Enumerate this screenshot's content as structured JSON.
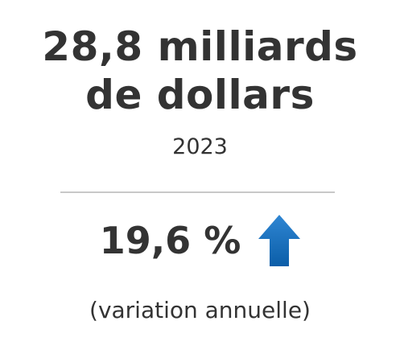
{
  "headline": {
    "line1": "28,8 milliards",
    "line2": "de dollars"
  },
  "year": "2023",
  "change": {
    "value": "19,6 %",
    "direction": "up",
    "icon": "arrow-up-icon",
    "color_top": "#2f86d3",
    "color_bottom": "#0b5ea8"
  },
  "caption": "(variation annuelle)"
}
